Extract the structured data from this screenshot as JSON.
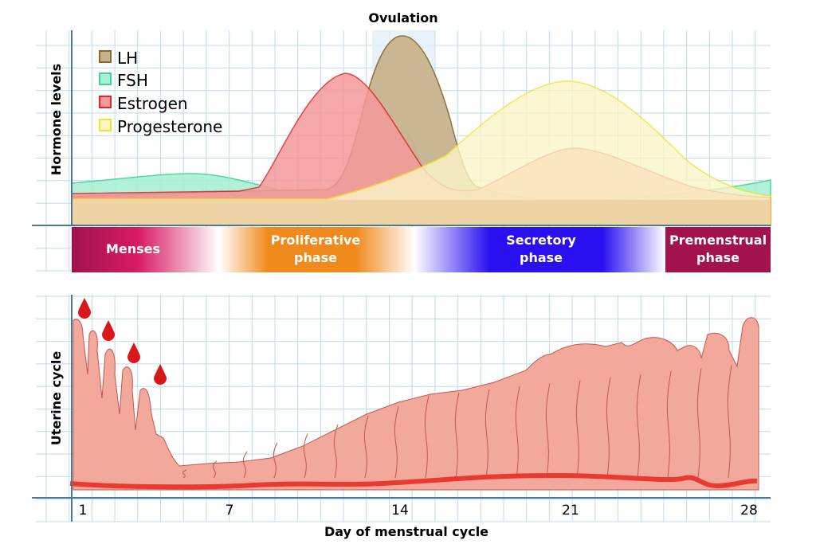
{
  "top_chart": {
    "title": "Ovulation",
    "ylabel": "Hormone levels",
    "legend": [
      {
        "label": "LH",
        "color": "#c8b38e",
        "stroke": "#8a6a2a"
      },
      {
        "label": "FSH",
        "color": "#a8f0d4",
        "stroke": "#3fd39a"
      },
      {
        "label": "Estrogen",
        "color": "#f59a9a",
        "stroke": "#e0242a"
      },
      {
        "label": "Progesterone",
        "color": "#fbf6c8",
        "stroke": "#f2e22a"
      }
    ]
  },
  "phases": [
    {
      "line1": "Menses",
      "line2": ""
    },
    {
      "line1": "Proliferative",
      "line2": "phase"
    },
    {
      "line1": "Secretory",
      "line2": "phase"
    },
    {
      "line1": "Premenstrual",
      "line2": "phase"
    }
  ],
  "bottom_chart": {
    "ylabel": "Uterine cycle",
    "xlabel": "Day of menstrual cycle",
    "xticks": [
      "1",
      "7",
      "14",
      "21",
      "28"
    ]
  },
  "colors": {
    "grid": "#bcdcef",
    "menses": "#a3124c",
    "proliferative": "#f08a1c",
    "secretory": "#2a10f0",
    "premenstrual": "#a3124c",
    "endometrium": "#f2a89a",
    "blood": "#e01818"
  }
}
